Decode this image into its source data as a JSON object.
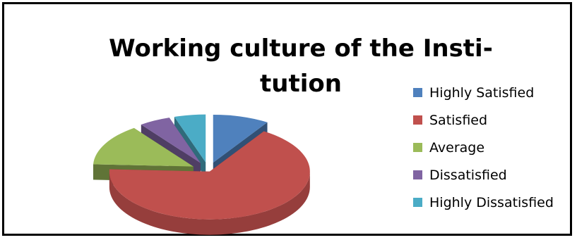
{
  "chart_data": {
    "type": "pie",
    "style": "3d-exploded",
    "title": "Working culture of the Insti- tution",
    "title_lines": [
      "Working culture of the Insti-",
      "tution"
    ],
    "categories": [
      "Highly Satisfied",
      "Satisfied",
      "Average",
      "Dissatisfied",
      "Highly Dissatisfied"
    ],
    "values": [
      9,
      66,
      14,
      5,
      5
    ],
    "colors": [
      "#4f81bd",
      "#c0504d",
      "#9bbb59",
      "#8064a2",
      "#4bacc6"
    ],
    "legend": "right"
  }
}
